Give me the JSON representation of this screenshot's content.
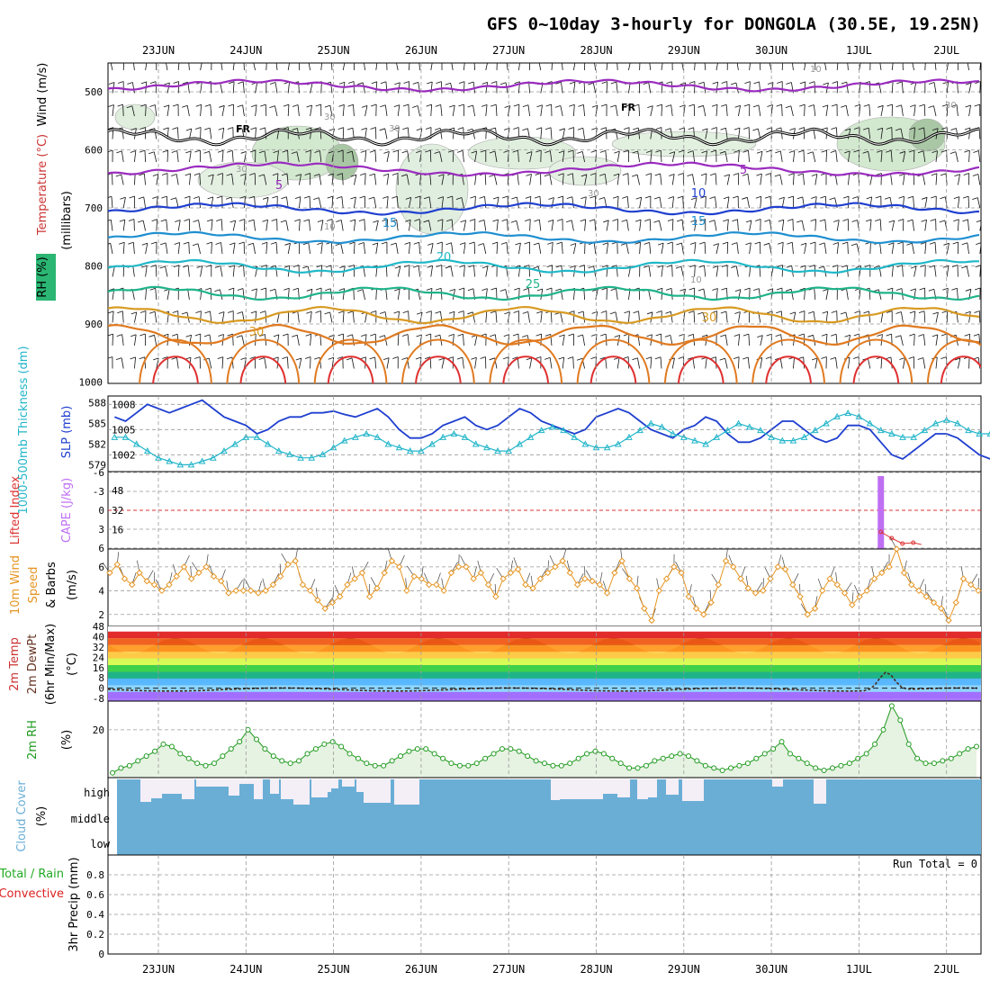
{
  "title": "GFS 0~10day 3-hourly for DONGOLA (30.5E, 19.25N)",
  "dates": [
    "23JUN",
    "24JUN",
    "25JUN",
    "26JUN",
    "27JUN",
    "28JUN",
    "29JUN",
    "30JUN",
    "1JUL",
    "2JUL"
  ],
  "colors": {
    "wind": "#000000",
    "temperature": "#cc3333",
    "rh_bg": "#2bb673",
    "thickness": "#22b5c9",
    "slp": "#1f3fcf",
    "lifted": "#dd3333",
    "cape": "#bf6ff3",
    "wind10": "#e69522",
    "rh2m": "#1f9a1f",
    "cloud": "#6aaed6",
    "cloud_gap": "#f4eef6",
    "precip_total": "#22aa22",
    "precip_conv": "#dd2222"
  },
  "panels": {
    "upper": {
      "ylabel_wind": "Wind (m/s)",
      "ylabel_temp": "Temperature (°C)",
      "ylabel_rh": "RH (%)",
      "ylabel_axis": "(millibars)",
      "yticks": [
        "500",
        "600",
        "700",
        "800",
        "900",
        "1000"
      ],
      "freezing_label": "FR",
      "temp_contour_labels": [
        "5",
        "10",
        "15",
        "20",
        "25",
        "30"
      ],
      "rh_contour_labels": [
        "10",
        "30",
        "30",
        "30",
        "30",
        "10",
        "30",
        "10"
      ]
    },
    "slp": {
      "ylabel_thick": "1000-500mb Thickness (dm)",
      "ylabel_slp": "SLP (mb)",
      "yticks_left": [
        "588",
        "585",
        "582",
        "579"
      ],
      "yticks_right": [
        "1008",
        "1005",
        "1002"
      ]
    },
    "cape": {
      "ylabel_li": "Lifted Index",
      "ylabel_cape": "CAPE (J/kg)",
      "yticks_left": [
        "-6",
        "-3",
        "0",
        "3",
        "6"
      ],
      "yticks_right": [
        "48",
        "32",
        "16"
      ]
    },
    "wind10": {
      "ylabel_a": "10m Wind",
      "ylabel_b": "Speed",
      "ylabel_c": "& Barbs",
      "ylabel_unit": "(m/s)",
      "yticks": [
        "6",
        "4",
        "2"
      ]
    },
    "temp2m": {
      "ylabel_a": "2m Temp",
      "ylabel_b": "2m DewPt",
      "ylabel_c": "(6hr Min/Max)",
      "ylabel_unit": "(°C)",
      "yticks": [
        "48",
        "40",
        "32",
        "24",
        "16",
        "8",
        "0",
        "-8"
      ]
    },
    "rh2m": {
      "ylabel": "2m RH",
      "ylabel_unit": "(%)",
      "yticks": [
        "20"
      ]
    },
    "cloud": {
      "ylabel": "Cloud Cover",
      "ylabel_unit": "(%)",
      "levels": [
        "high",
        "middle",
        "low"
      ]
    },
    "precip": {
      "ylabel_a": "Total / Rain",
      "ylabel_b": "Convective",
      "ylabel_c": "3hr Precip (mm)",
      "yticks": [
        "0.8",
        "0.6",
        "0.4",
        "0.2",
        "0"
      ],
      "run_total": "Run Total = 0"
    }
  },
  "chart_data": {
    "type": "line",
    "x_step_hours": 3,
    "x_start": "22JUN 12Z",
    "series": [
      {
        "name": "SLP (mb)",
        "values": [
          1006.5,
          1006,
          1007,
          1008,
          1007.5,
          1007,
          1007.5,
          1008,
          1008.5,
          1007.5,
          1006.5,
          1006,
          1005.5,
          1004.5,
          1005,
          1006,
          1006.5,
          1006.5,
          1007,
          1007,
          1007.2,
          1006.8,
          1006.5,
          1007,
          1007.5,
          1006.5,
          1005,
          1004,
          1004,
          1004.5,
          1005.5,
          1006,
          1006.5,
          1005.5,
          1005,
          1005.5,
          1006.5,
          1007.5,
          1007,
          1006,
          1005.5,
          1005,
          1004.5,
          1005,
          1006.5,
          1007,
          1007.5,
          1007,
          1006,
          1005,
          1004.5,
          1004,
          1005,
          1005.5,
          1006.5,
          1006,
          1004.5,
          1003.5,
          1003.5,
          1004,
          1005,
          1006,
          1006,
          1005,
          1004,
          1003.5,
          1004,
          1005.5,
          1005.5,
          1005,
          1003.5,
          1002,
          1001.5,
          1002.5,
          1003.5,
          1004.5,
          1004.5,
          1004,
          1003,
          1002,
          1001.5,
          1002,
          1003.5,
          1005,
          1005.5,
          1005,
          1003.5,
          1002,
          1001,
          1001.5,
          1003,
          1004.5,
          1005.5,
          1005,
          1004,
          1003,
          1003.5,
          1004.5,
          1005.5,
          1006.5,
          1006.5,
          1006,
          1006.8
        ]
      },
      {
        "name": "1000-500mb Thickness (dm)",
        "values": [
          583,
          583,
          582,
          581,
          580,
          579.5,
          579,
          579,
          579.5,
          580,
          581,
          582,
          583,
          583,
          582,
          581,
          580.5,
          580,
          580,
          580.5,
          581.5,
          582.5,
          583,
          583.5,
          583,
          582,
          581.5,
          581,
          581,
          582,
          583,
          583.5,
          583,
          582,
          581.5,
          581,
          581,
          582,
          583,
          584,
          584.5,
          584,
          583,
          582,
          581.5,
          581.5,
          582,
          583,
          584,
          585,
          584.5,
          583.5,
          583,
          582.5,
          582,
          583,
          584,
          585,
          584.5,
          584,
          583,
          582.5,
          582.5,
          583,
          584,
          585,
          586,
          586.5,
          586,
          585,
          584,
          583.5,
          583,
          583,
          584,
          585,
          585.5,
          585,
          584,
          583.5,
          583.5,
          584,
          585,
          586,
          586.5,
          586,
          585,
          584,
          583.5,
          584,
          585,
          586.5,
          587.5,
          587,
          586,
          585.5,
          585.5,
          586,
          586.5,
          587
        ]
      },
      {
        "name": "10m Wind Speed (m/s)",
        "values": [
          5.5,
          6.2,
          5,
          4.5,
          5.5,
          4.8,
          4.5,
          4,
          4.5,
          5.2,
          6,
          5,
          5.5,
          6,
          5.2,
          4.8,
          3.8,
          4,
          4,
          4,
          3.8,
          4,
          4.5,
          5.2,
          6.2,
          6.5,
          4.5,
          4,
          3.2,
          2.5,
          3,
          3.5,
          4.5,
          5,
          5.5,
          3.5,
          4.2,
          5.5,
          6.5,
          6,
          4,
          5.2,
          5,
          4.5,
          4.5,
          4,
          5.5,
          6,
          6,
          5,
          5.5,
          4.5,
          3.5,
          5,
          5.5,
          5.8,
          4.5,
          4.2,
          5,
          5.5,
          6,
          6.5,
          5.5,
          4.5,
          5,
          4.8,
          4.5,
          3.8,
          5.5,
          6.5,
          5,
          4.2,
          2.5,
          1.5,
          4,
          5,
          6,
          5.5,
          3.5,
          2.5,
          2,
          3,
          4.5,
          6.5,
          6,
          5,
          4.2,
          3.8,
          4,
          5,
          6,
          5.8,
          4.5,
          3.5,
          2,
          2.5,
          4,
          5,
          4.5,
          3.8,
          2.8,
          3.5,
          4,
          5,
          5.5,
          6,
          7.5,
          5.5,
          4.5,
          4,
          3.5,
          3,
          2.5,
          1.5,
          3,
          5,
          4.5,
          4
        ]
      },
      {
        "name": "2m RH (%)",
        "values": [
          2,
          4,
          5,
          7,
          9,
          11,
          14,
          13,
          10,
          8,
          6,
          5,
          6,
          9,
          12,
          15,
          20,
          16,
          12,
          9,
          7,
          6,
          7,
          10,
          12,
          14,
          15,
          13,
          10,
          8,
          6,
          5,
          5,
          7,
          9,
          11,
          12,
          12,
          10,
          8,
          6,
          5,
          5,
          6,
          8,
          10,
          12,
          12,
          11,
          9,
          7,
          6,
          5,
          5,
          6,
          8,
          10,
          11,
          10,
          8,
          6,
          4,
          4,
          5,
          7,
          8,
          9,
          10,
          9,
          7,
          5,
          4,
          3,
          4,
          5,
          6,
          8,
          10,
          12,
          15,
          10,
          8,
          6,
          4,
          3,
          4,
          5,
          6,
          8,
          10,
          14,
          20,
          30,
          24,
          14,
          8,
          6,
          6,
          7,
          8,
          10,
          12,
          13
        ]
      }
    ],
    "cape_spike": {
      "date": "1JUL",
      "value": 60
    },
    "ylim_slp": [
      1000,
      1009
    ],
    "ylim_thickness": [
      578,
      589
    ],
    "ylim_wind10": [
      1,
      7.5
    ],
    "ylim_rh2m": [
      0,
      32
    ],
    "ylim_precip": [
      0,
      1
    ],
    "precip_values": "all zero"
  }
}
